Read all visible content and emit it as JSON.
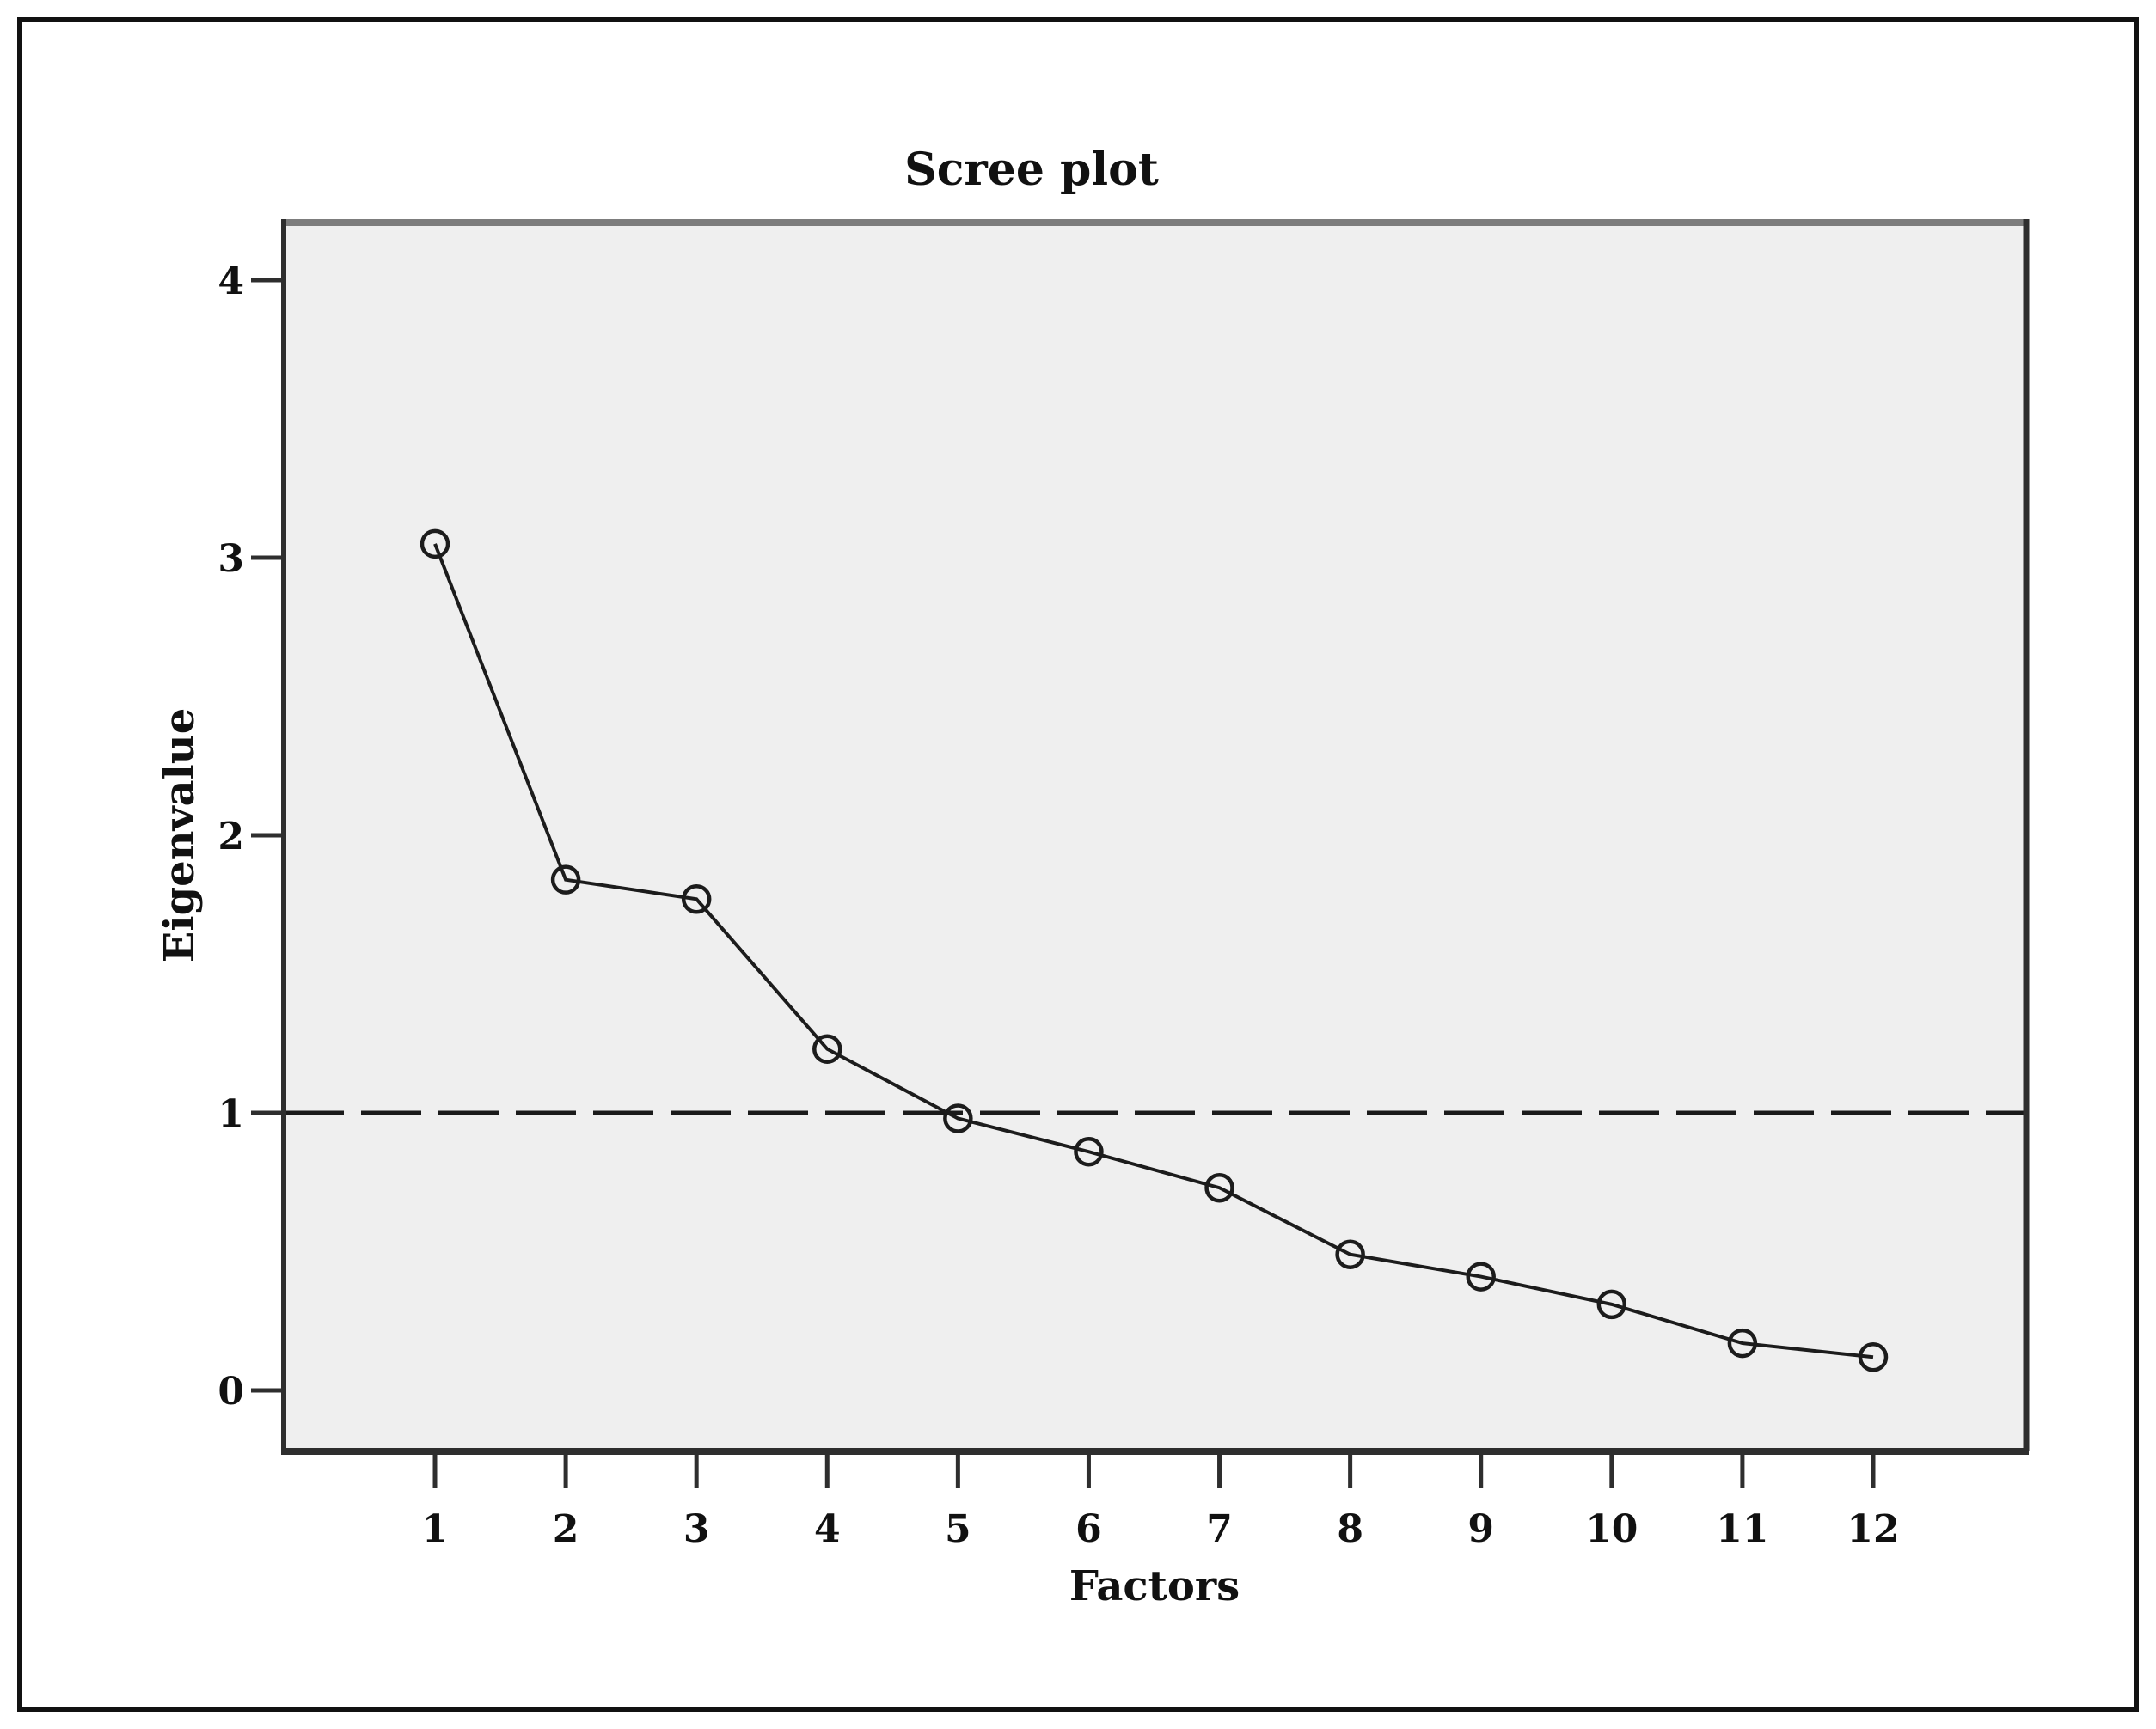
{
  "figure": {
    "title": "Scree plot"
  },
  "chart_data": {
    "type": "line",
    "title": "Scree plot",
    "xlabel": "Factors",
    "ylabel": "Eigenvalue",
    "x": [
      1,
      2,
      3,
      4,
      5,
      6,
      7,
      8,
      9,
      10,
      11,
      12
    ],
    "x_tick_labels": [
      "1",
      "2",
      "3",
      "4",
      "5",
      "6",
      "7",
      "8",
      "9",
      "10",
      "11",
      "12"
    ],
    "series": [
      {
        "name": "Eigenvalue",
        "values": [
          3.05,
          1.84,
          1.77,
          1.23,
          0.98,
          0.86,
          0.73,
          0.49,
          0.41,
          0.31,
          0.17,
          0.12
        ]
      }
    ],
    "y_ticks": [
      0,
      1,
      2,
      3,
      4
    ],
    "y_tick_labels": [
      "0",
      "1",
      "2",
      "3",
      "4"
    ],
    "ylim_labeled": [
      0,
      4
    ],
    "reference_line": {
      "y": 1,
      "style": "dashed"
    },
    "grid": false,
    "legend": "none",
    "marker": "open-circle",
    "colors": {
      "line": "#1c1c1c",
      "marker_stroke": "#1c1c1c",
      "plot_background": "#efefef",
      "reference_line": "#1a1a1a",
      "axis_dark": "#2e2e2e",
      "axis_top": "#7d7d7d",
      "text": "#111111"
    }
  }
}
